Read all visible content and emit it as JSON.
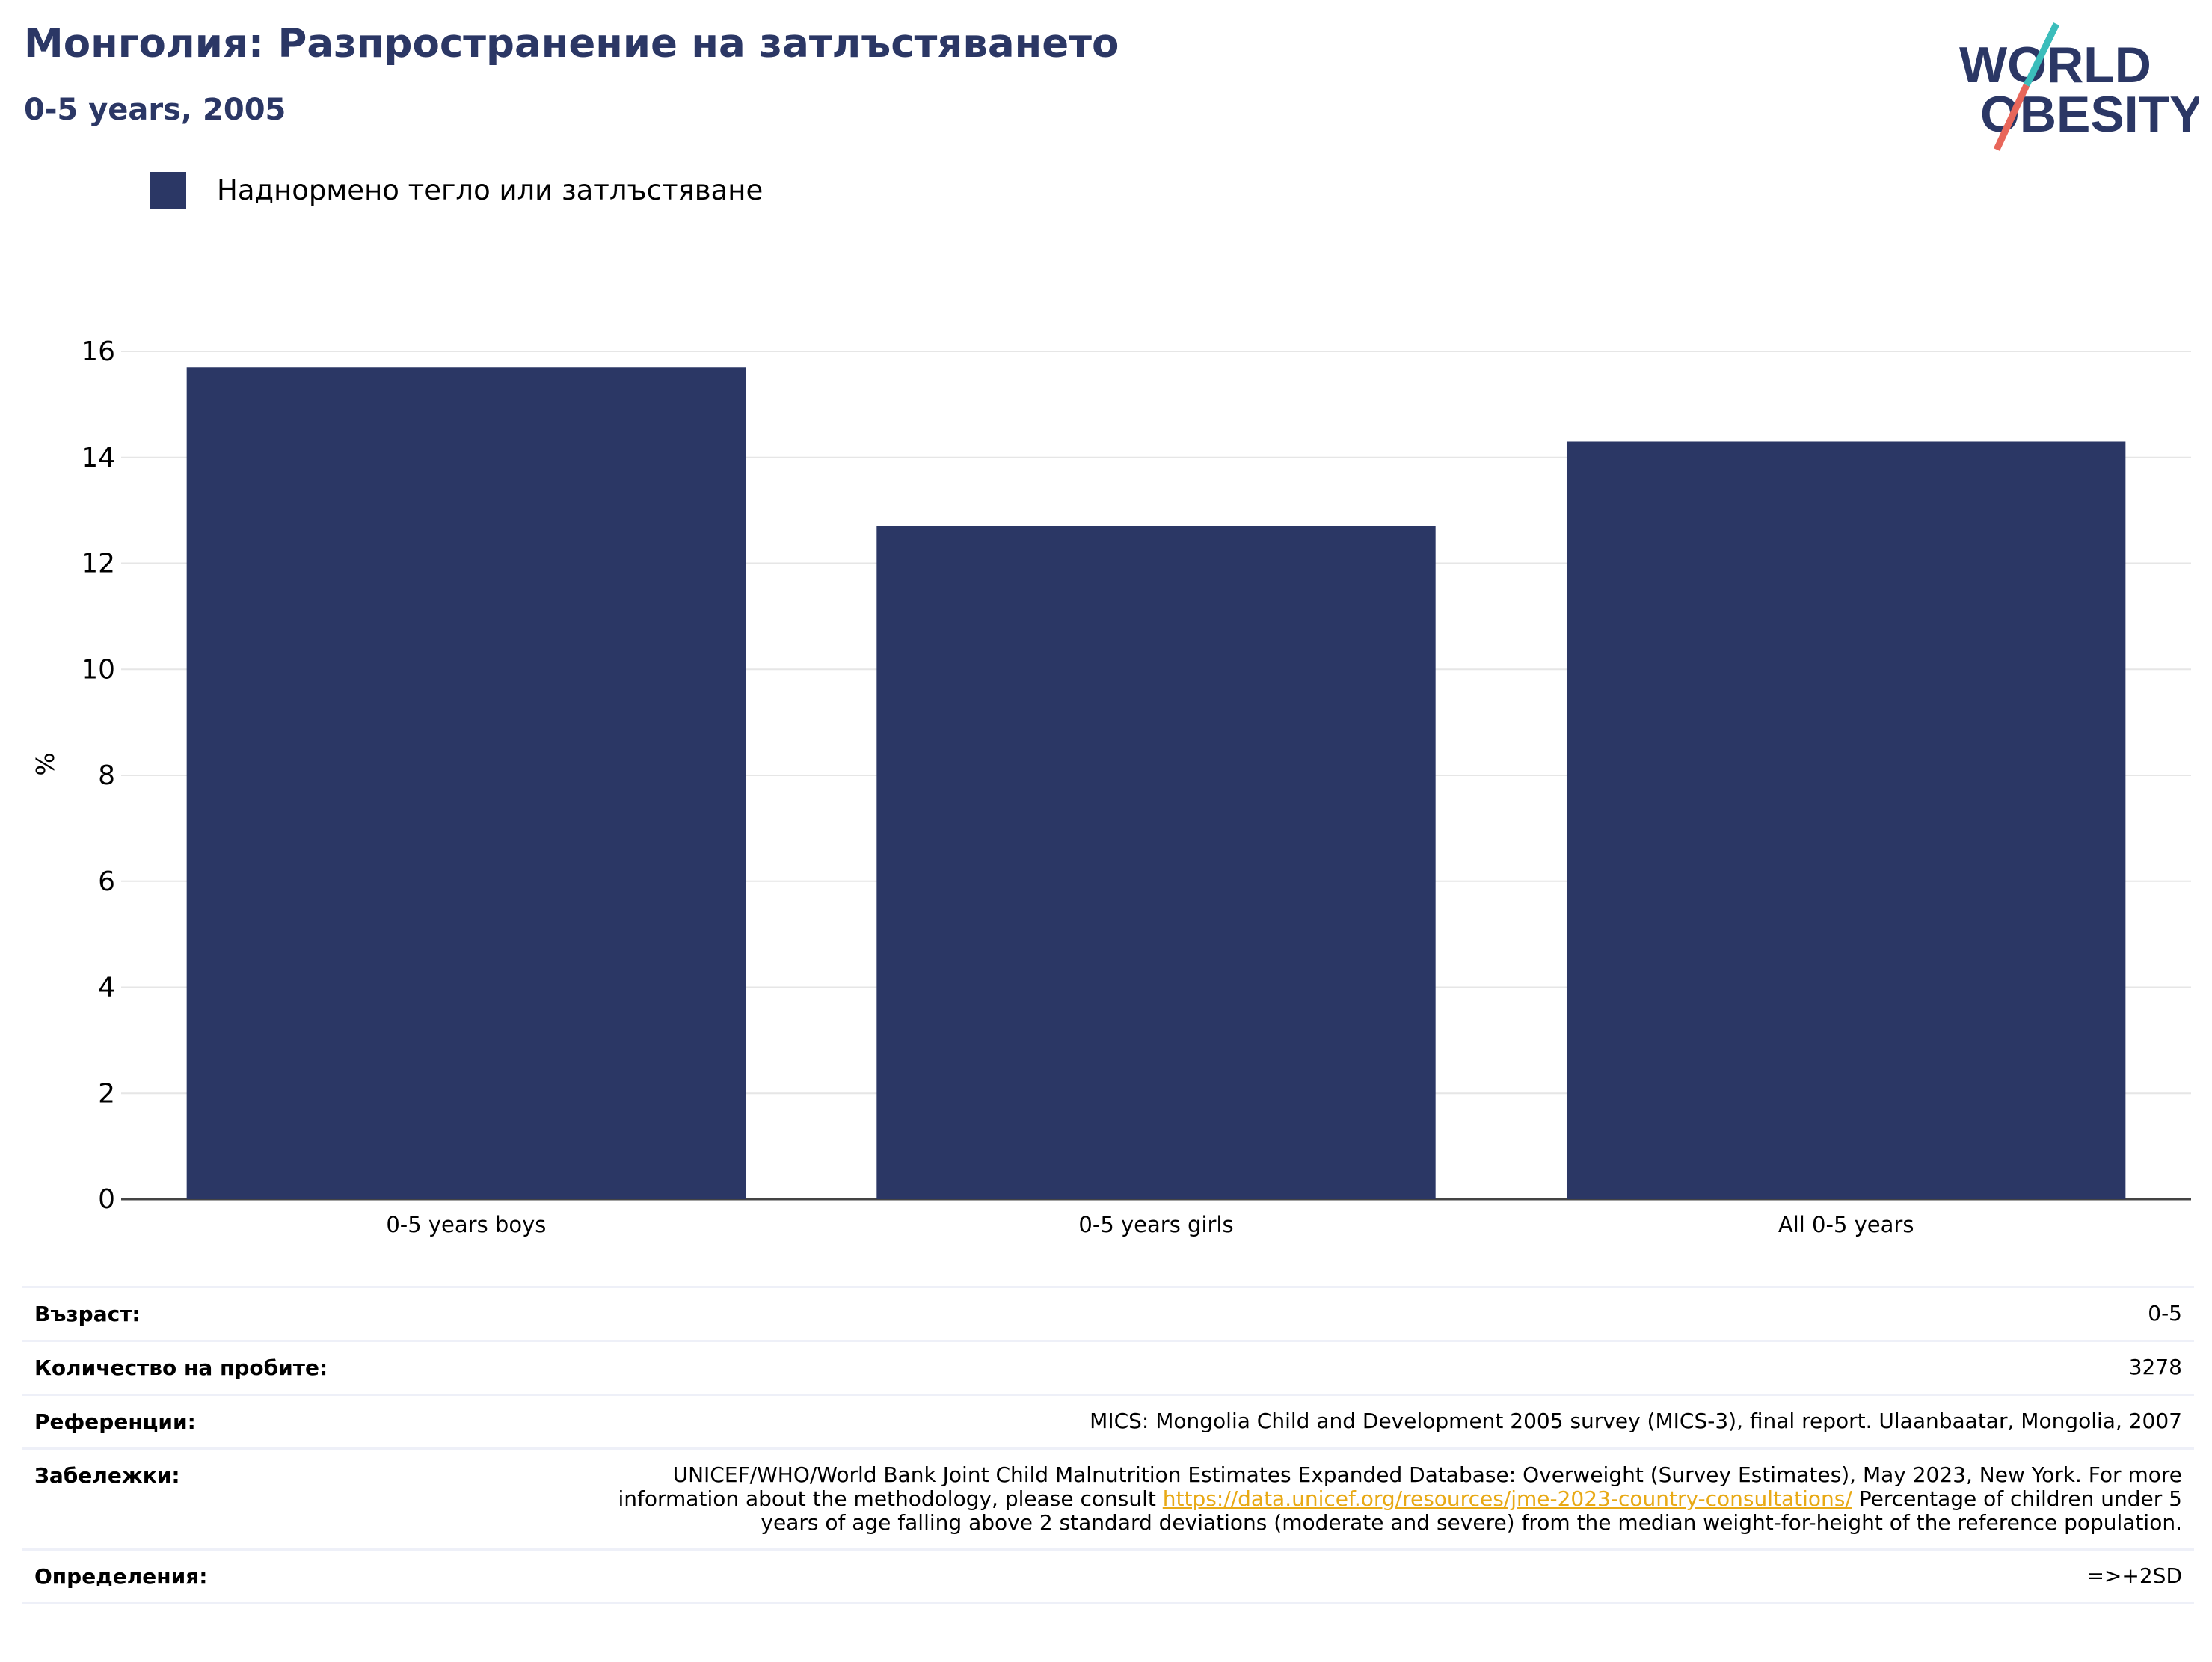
{
  "header": {
    "title": "Монголия: Разпространение на затлъстяването",
    "subtitle": "0-5 years, 2005"
  },
  "logo": {
    "line1": "WORLD",
    "line2": "OBESITY",
    "colors": {
      "text": "#2b3765",
      "slash_teal": "#3bbdbb",
      "slash_red": "#e8665a"
    }
  },
  "legend": {
    "label": "Наднормено тегло или затлъстяване"
  },
  "chart_data": {
    "type": "bar",
    "categories": [
      "0-5 years boys",
      "0-5 years girls",
      "All 0-5 years"
    ],
    "series": [
      {
        "name": "Наднормено тегло или затлъстяване",
        "values": [
          15.7,
          12.7,
          14.3
        ],
        "color": "#2b3765"
      }
    ],
    "ylabel": "%",
    "xlabel": "",
    "ylim": [
      0,
      16
    ],
    "yticks": [
      0,
      2,
      4,
      6,
      8,
      10,
      12,
      14,
      16
    ],
    "grid": true,
    "legend_position": "top-left"
  },
  "info": {
    "rows": [
      {
        "label": "Възраст:",
        "value": "0-5"
      },
      {
        "label": "Количество на пробите:",
        "value": "3278"
      },
      {
        "label": "Референции:",
        "value": "MICS: Mongolia Child and Development 2005 survey (MICS-3), final report. Ulaanbaatar, Mongolia, 2007"
      },
      {
        "label": "Забележки:",
        "value_before": "UNICEF/WHO/World Bank Joint Child Malnutrition Estimates Expanded Database: Overweight (Survey Estimates), May 2023, New York. For more information about the methodology, please consult ",
        "link": "https://data.unicef.org/resources/jme-2023-country-consultations/",
        "value_after": " Percentage of children under 5 years of age falling above 2 standard deviations (moderate and severe) from the median weight-for-height of the reference population."
      },
      {
        "label": "Определения:",
        "value": "=>+2SD"
      }
    ]
  }
}
